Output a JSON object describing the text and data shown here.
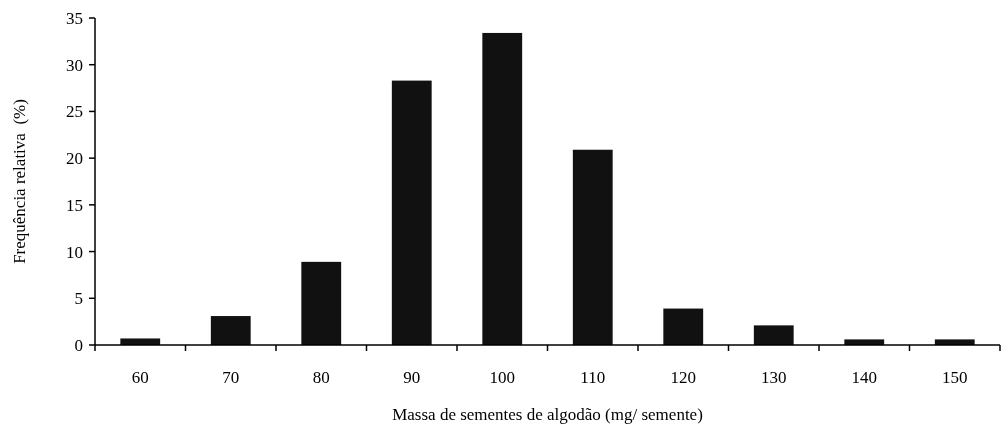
{
  "chart_data": {
    "type": "bar",
    "xlabel": "Massa de sementes de algodão (mg/ semente)",
    "ylabel": "Frequência relativa  (%)",
    "categories": [
      "60",
      "70",
      "80",
      "90",
      "100",
      "110",
      "120",
      "130",
      "140",
      "150"
    ],
    "values": [
      0.7,
      3.1,
      8.9,
      28.3,
      33.4,
      20.9,
      3.9,
      2.1,
      0.6,
      0.6
    ],
    "color": "#111111",
    "ylim": [
      0,
      35
    ],
    "yticks": [
      0,
      5,
      10,
      15,
      20,
      25,
      30,
      35
    ],
    "grid": false
  }
}
